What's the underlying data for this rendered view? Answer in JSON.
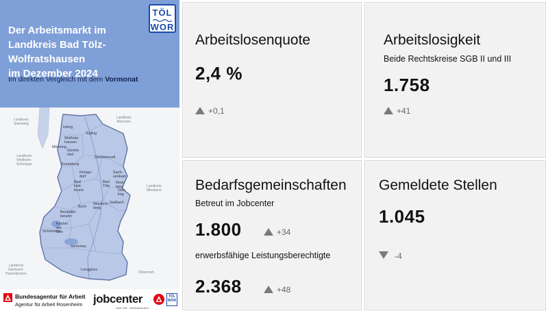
{
  "header": {
    "title_lines": [
      "Der Arbeitsmarkt im",
      "Landkreis Bad Tölz-Wolfratshausen",
      "im Dezember 2024"
    ],
    "subtitle_prefix": "Im direkten Vergleich mit dem",
    "subtitle_bold": "Vormonat",
    "logo_line1": "TÖL",
    "logo_line2": "WOR",
    "color": "#7f9fd8"
  },
  "map": {
    "regions": [
      "Landkreis\nStarnberg",
      "Landkreis\nMünchen",
      "Landkreis\nWeilheim-\nSchongau",
      "Landkreis\nMiesbach",
      "Landkreis\nGarmisch-\nPartenkirchen",
      "Österreich"
    ],
    "towns": [
      "Icking",
      "Egling",
      "Wolfrats-\nhausen",
      "Münsing",
      "Gerets-\nried",
      "Dietramszell",
      "Eurasburg",
      "Königs-\ndorf",
      "Sach-\nsenkam",
      "Reut-\nberg",
      "Bad\nHeil-\nbrunn",
      "Bad\nTölz",
      "Grei-\nling",
      "Gaißach",
      "Bichl",
      "Wackers-\nberg",
      "Benedikt-\nbeuern",
      "Kochel\nam\nSee",
      "Schlehdorf",
      "Jachenau",
      "Lenggries"
    ],
    "fill_color": "#b9c8e6"
  },
  "footer": {
    "ba_name": "Bundesagentur für Arbeit",
    "ba_sub": "Agentur für Arbeit Rosenheim",
    "jobcenter": "jobcenter",
    "jobcenter_sub": "Bad Tölz - Wolfratshausen",
    "mini_logo_line1": "TÖL",
    "mini_logo_line2": "WOR"
  },
  "cards": {
    "quote": {
      "title": "Arbeitslosenquote",
      "value": "2,4 %",
      "delta": "+0,1",
      "trend": "up"
    },
    "unemployment": {
      "title": "Arbeitslosigkeit",
      "subtitle": "Beide Rechtskreise SGB II und III",
      "value": "1.758",
      "delta": "+41",
      "trend": "up"
    },
    "communities": {
      "title": "Bedarfsgemeinschaften",
      "subtitle": "Betreut im Jobcenter",
      "value": "1.800",
      "delta": "+34",
      "subtitle2": "erwerbsfähige Leistungsberechtigte",
      "value2": "2.368",
      "delta2": "+48",
      "trend": "up"
    },
    "jobs": {
      "title": "Gemeldete Stellen",
      "value": "1.045",
      "delta": "-4",
      "trend": "down"
    }
  },
  "colors": {
    "card_bg": "#f2f2f2",
    "triangle": "#7a7a7a",
    "logo_blue": "#1a4aa8",
    "ba_red": "#e30613"
  }
}
